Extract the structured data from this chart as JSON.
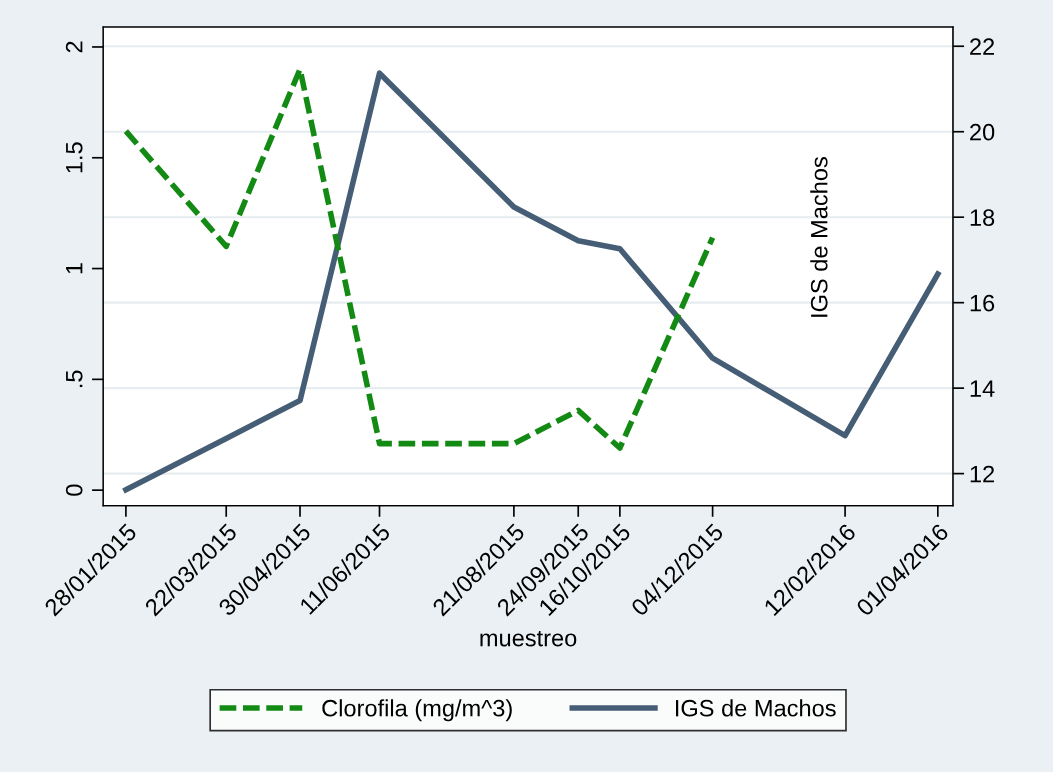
{
  "chart_data": {
    "type": "line",
    "xlabel": "muestreo",
    "y2label": "IGS de Machos",
    "x": [
      "2015-01-28",
      "2015-03-22",
      "2015-04-30",
      "2015-06-11",
      "2015-08-21",
      "2015-09-24",
      "2015-10-16",
      "2015-12-04",
      "2016-02-12",
      "2016-04-01"
    ],
    "series": [
      {
        "name": "Clorofila (mg/m^3)",
        "color": "#138a13",
        "line_style": "dashed",
        "values": [
          1.62,
          1.1,
          1.9,
          0.21,
          0.21,
          0.36,
          0.19,
          1.14,
          null,
          null
        ]
      },
      {
        "name": "IGS de Machos",
        "color": "#455e75",
        "line_style": "solid",
        "axis": "y2",
        "values": [
          11.62,
          12.82,
          13.71,
          21.37,
          18.24,
          17.45,
          17.26,
          14.7,
          12.89,
          16.67
        ]
      }
    ],
    "xlim": [
      "2015-01-16",
      "2016-04-09"
    ],
    "xticks": [
      {
        "value": "2015-01-28",
        "label": "28/01/2015"
      },
      {
        "value": "2015-03-22",
        "label": "22/03/2015"
      },
      {
        "value": "2015-04-30",
        "label": "30/04/2015"
      },
      {
        "value": "2015-06-11",
        "label": "11/06/2015"
      },
      {
        "value": "2015-08-21",
        "label": "21/08/2015"
      },
      {
        "value": "2015-09-24",
        "label": "24/09/2015"
      },
      {
        "value": "2015-10-16",
        "label": "16/10/2015"
      },
      {
        "value": "2015-12-04",
        "label": "04/12/2015"
      },
      {
        "value": "2016-02-12",
        "label": "12/02/2016"
      },
      {
        "value": "2016-04-01",
        "label": "01/04/2016"
      }
    ],
    "ylim": [
      -0.07,
      2.09
    ],
    "yticks": [
      0,
      {
        "value": 0.5,
        "label": ".5"
      },
      1,
      1.5,
      2
    ],
    "y2lim": [
      11.25,
      22.45
    ],
    "y2ticks": [
      12,
      14,
      16,
      18,
      20,
      22
    ],
    "grid": "y2",
    "legend": "bottom",
    "marker": "none"
  }
}
